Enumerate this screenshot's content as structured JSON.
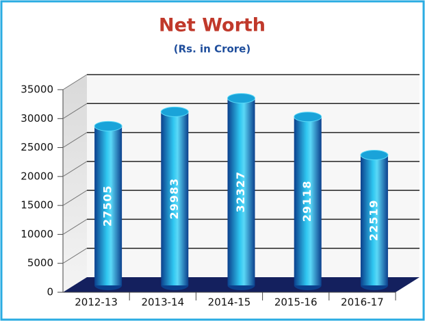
{
  "chart_data": {
    "type": "bar",
    "title": "Net Worth",
    "subtitle": "(Rs. in Crore)",
    "categories": [
      "2012-13",
      "2013-14",
      "2014-15",
      "2015-16",
      "2016-17"
    ],
    "values": [
      27505,
      29983,
      32327,
      29118,
      22519
    ],
    "color": "#1aa3d9",
    "ylim": [
      0,
      35000
    ],
    "yticks": [
      0,
      5000,
      10000,
      15000,
      20000,
      25000,
      30000,
      35000
    ],
    "grid": true
  }
}
